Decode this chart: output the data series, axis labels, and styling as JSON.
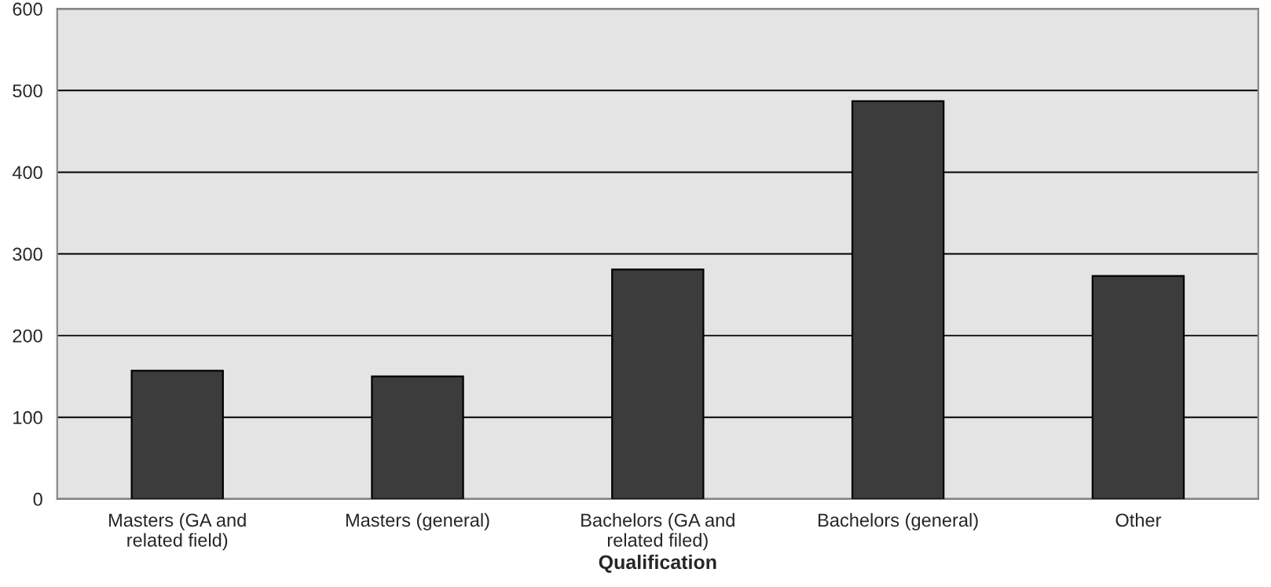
{
  "chart_data": {
    "type": "bar",
    "xlabel": "Qualification",
    "categories": [
      "Masters (GA and\nrelated field)",
      "Masters (general)",
      "Bachelors (GA and\nrelated filed)",
      "Bachelors (general)",
      "Other"
    ],
    "values": [
      157,
      150,
      281,
      487,
      273
    ],
    "color": "#3c3c3c",
    "ylim": [
      0,
      600
    ],
    "yticks": [
      0,
      100,
      200,
      300,
      400,
      500,
      600
    ],
    "grid": "y",
    "legend": false
  }
}
